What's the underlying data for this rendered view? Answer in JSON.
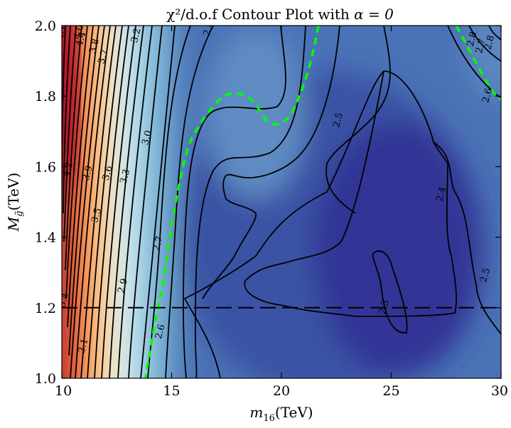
{
  "chart_data": {
    "type": "heatmap",
    "title_prefix": "χ²/d.o.f Contour Plot with ",
    "title_math": "α = 0",
    "xlabel_main": "m",
    "xlabel_sub": "16",
    "xlabel_unit": "(TeV)",
    "ylabel_main": "M",
    "ylabel_sub": "g̃",
    "ylabel_unit": "(TeV)",
    "xlim": [
      10,
      30
    ],
    "ylim": [
      1.0,
      2.0
    ],
    "xticks": [
      {
        "value": 10,
        "label": "10"
      },
      {
        "value": 15,
        "label": "15"
      },
      {
        "value": 20,
        "label": "20"
      },
      {
        "value": 25,
        "label": "25"
      },
      {
        "value": 30,
        "label": "30"
      }
    ],
    "yticks": [
      {
        "value": 1.0,
        "label": "1.0"
      },
      {
        "value": 1.2,
        "label": "1.2"
      },
      {
        "value": 1.4,
        "label": "1.4"
      },
      {
        "value": 1.6,
        "label": "1.6"
      },
      {
        "value": 1.8,
        "label": "1.8"
      },
      {
        "value": 2.0,
        "label": "2.0"
      }
    ],
    "colormap": [
      "#313695",
      "#4575b4",
      "#74add1",
      "#abd9e9",
      "#e0f3f8",
      "#ffffbf",
      "#fee090",
      "#fdae61",
      "#f46d43",
      "#d73027",
      "#a50026"
    ],
    "dashed_line": {
      "y": 1.2,
      "color": "#000000"
    },
    "highlight_contour_color": "#00ff00",
    "contour_labels": [
      {
        "text": "4.1",
        "x": 10.1,
        "y": 1.98
      },
      {
        "text": "4.0",
        "x": 10.9,
        "y": 1.98
      },
      {
        "text": "4.4",
        "x": 11.0,
        "y": 1.96
      },
      {
        "text": "3.8",
        "x": 11.6,
        "y": 1.94
      },
      {
        "text": "3.7",
        "x": 12.0,
        "y": 1.91
      },
      {
        "text": "3.2",
        "x": 13.5,
        "y": 1.97
      },
      {
        "text": "2.8",
        "x": 16.8,
        "y": 1.99
      },
      {
        "text": "4.2",
        "x": 10.4,
        "y": 1.59
      },
      {
        "text": "3.9",
        "x": 11.3,
        "y": 1.58
      },
      {
        "text": "3.6",
        "x": 12.2,
        "y": 1.58
      },
      {
        "text": "3.3",
        "x": 13.0,
        "y": 1.57
      },
      {
        "text": "3.0",
        "x": 14.0,
        "y": 1.68
      },
      {
        "text": "3.5",
        "x": 11.7,
        "y": 1.46
      },
      {
        "text": "2.5",
        "x": 22.7,
        "y": 1.73
      },
      {
        "text": "2.4",
        "x": 27.4,
        "y": 1.52
      },
      {
        "text": "2.7",
        "x": 14.5,
        "y": 1.38
      },
      {
        "text": "2.9",
        "x": 12.9,
        "y": 1.26
      },
      {
        "text": "3.4",
        "x": 10.2,
        "y": 1.22
      },
      {
        "text": "3.1",
        "x": 11.1,
        "y": 1.09
      },
      {
        "text": "2.6",
        "x": 14.6,
        "y": 1.13
      },
      {
        "text": "2.3",
        "x": 24.8,
        "y": 1.2
      },
      {
        "text": "2.5",
        "x": 29.4,
        "y": 1.29
      },
      {
        "text": "2.8",
        "x": 29.6,
        "y": 1.95
      },
      {
        "text": "2.7",
        "x": 29.2,
        "y": 1.94
      },
      {
        "text": "2.6",
        "x": 29.5,
        "y": 1.8
      },
      {
        "text": "2.8",
        "x": 28.8,
        "y": 1.96
      }
    ]
  }
}
